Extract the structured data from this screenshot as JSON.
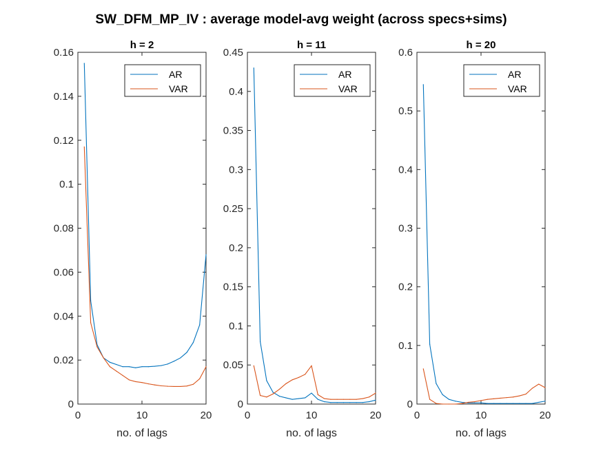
{
  "figure": {
    "title": "SW_DFM_MP_IV : average model-avg weight (across specs+sims)"
  },
  "chart_data": [
    {
      "type": "line",
      "title": "h = 2",
      "xlabel": "no. of lags",
      "ylabel": "",
      "xlim": [
        0,
        20
      ],
      "ylim": [
        0,
        0.16
      ],
      "xticks": [
        0,
        10,
        20
      ],
      "xtick_labels": [
        "0",
        "10",
        "20"
      ],
      "yticks": [
        0,
        0.02,
        0.04,
        0.06,
        0.08,
        0.1,
        0.12,
        0.14,
        0.16
      ],
      "ytick_labels": [
        "0",
        "0.02",
        "0.04",
        "0.06",
        "0.08",
        "0.1",
        "0.12",
        "0.14",
        "0.16"
      ],
      "grid": false,
      "legend_position": "top-right",
      "x": [
        1,
        2,
        3,
        4,
        5,
        6,
        7,
        8,
        9,
        10,
        11,
        12,
        13,
        14,
        15,
        16,
        17,
        18,
        19,
        20
      ],
      "series": [
        {
          "name": "AR",
          "color": "#0072BD",
          "values": [
            0.155,
            0.047,
            0.027,
            0.021,
            0.019,
            0.018,
            0.017,
            0.017,
            0.0165,
            0.017,
            0.017,
            0.0172,
            0.0175,
            0.0182,
            0.0195,
            0.021,
            0.0235,
            0.028,
            0.036,
            0.068
          ]
        },
        {
          "name": "VAR",
          "color": "#D95319",
          "values": [
            0.117,
            0.037,
            0.026,
            0.021,
            0.017,
            0.015,
            0.013,
            0.011,
            0.0102,
            0.0098,
            0.0092,
            0.0087,
            0.0083,
            0.0081,
            0.008,
            0.008,
            0.0082,
            0.009,
            0.0115,
            0.017
          ]
        }
      ]
    },
    {
      "type": "line",
      "title": "h = 11",
      "xlabel": "no. of lags",
      "ylabel": "",
      "xlim": [
        0,
        20
      ],
      "ylim": [
        0,
        0.45
      ],
      "xticks": [
        0,
        10,
        20
      ],
      "xtick_labels": [
        "0",
        "10",
        "20"
      ],
      "yticks": [
        0,
        0.05,
        0.1,
        0.15,
        0.2,
        0.25,
        0.3,
        0.35,
        0.4,
        0.45
      ],
      "ytick_labels": [
        "0",
        "0.05",
        "0.1",
        "0.15",
        "0.2",
        "0.25",
        "0.3",
        "0.35",
        "0.4",
        "0.45"
      ],
      "grid": false,
      "legend_position": "top-right",
      "x": [
        1,
        2,
        3,
        4,
        5,
        6,
        7,
        8,
        9,
        10,
        11,
        12,
        13,
        14,
        15,
        16,
        17,
        18,
        19,
        20
      ],
      "series": [
        {
          "name": "AR",
          "color": "#0072BD",
          "values": [
            0.43,
            0.08,
            0.03,
            0.015,
            0.01,
            0.008,
            0.006,
            0.007,
            0.008,
            0.014,
            0.006,
            0.003,
            0.002,
            0.002,
            0.002,
            0.002,
            0.002,
            0.002,
            0.003,
            0.005
          ]
        },
        {
          "name": "VAR",
          "color": "#D95319",
          "values": [
            0.049,
            0.011,
            0.009,
            0.013,
            0.019,
            0.026,
            0.031,
            0.034,
            0.038,
            0.049,
            0.012,
            0.007,
            0.006,
            0.006,
            0.006,
            0.006,
            0.006,
            0.007,
            0.009,
            0.014
          ]
        }
      ]
    },
    {
      "type": "line",
      "title": "h = 20",
      "xlabel": "no. of lags",
      "ylabel": "",
      "xlim": [
        0,
        20
      ],
      "ylim": [
        0,
        0.6
      ],
      "xticks": [
        0,
        10,
        20
      ],
      "xtick_labels": [
        "0",
        "10",
        "20"
      ],
      "yticks": [
        0,
        0.1,
        0.2,
        0.3,
        0.4,
        0.5,
        0.6
      ],
      "ytick_labels": [
        "0",
        "0.1",
        "0.2",
        "0.3",
        "0.4",
        "0.5",
        "0.6"
      ],
      "grid": false,
      "legend_position": "top-right",
      "x": [
        1,
        2,
        3,
        4,
        5,
        6,
        7,
        8,
        9,
        10,
        11,
        12,
        13,
        14,
        15,
        16,
        17,
        18,
        19,
        20
      ],
      "series": [
        {
          "name": "AR",
          "color": "#0072BD",
          "values": [
            0.545,
            0.102,
            0.035,
            0.016,
            0.008,
            0.005,
            0.003,
            0.002,
            0.002,
            0.002,
            0.001,
            0.001,
            0.001,
            0.001,
            0.001,
            0.001,
            0.001,
            0.001,
            0.003,
            0.005
          ]
        },
        {
          "name": "VAR",
          "color": "#D95319",
          "values": [
            0.06,
            0.008,
            0.001,
            0.0,
            0.0,
            0.0,
            0.001,
            0.003,
            0.004,
            0.006,
            0.008,
            0.009,
            0.01,
            0.011,
            0.012,
            0.014,
            0.017,
            0.027,
            0.034,
            0.028
          ]
        }
      ]
    }
  ]
}
